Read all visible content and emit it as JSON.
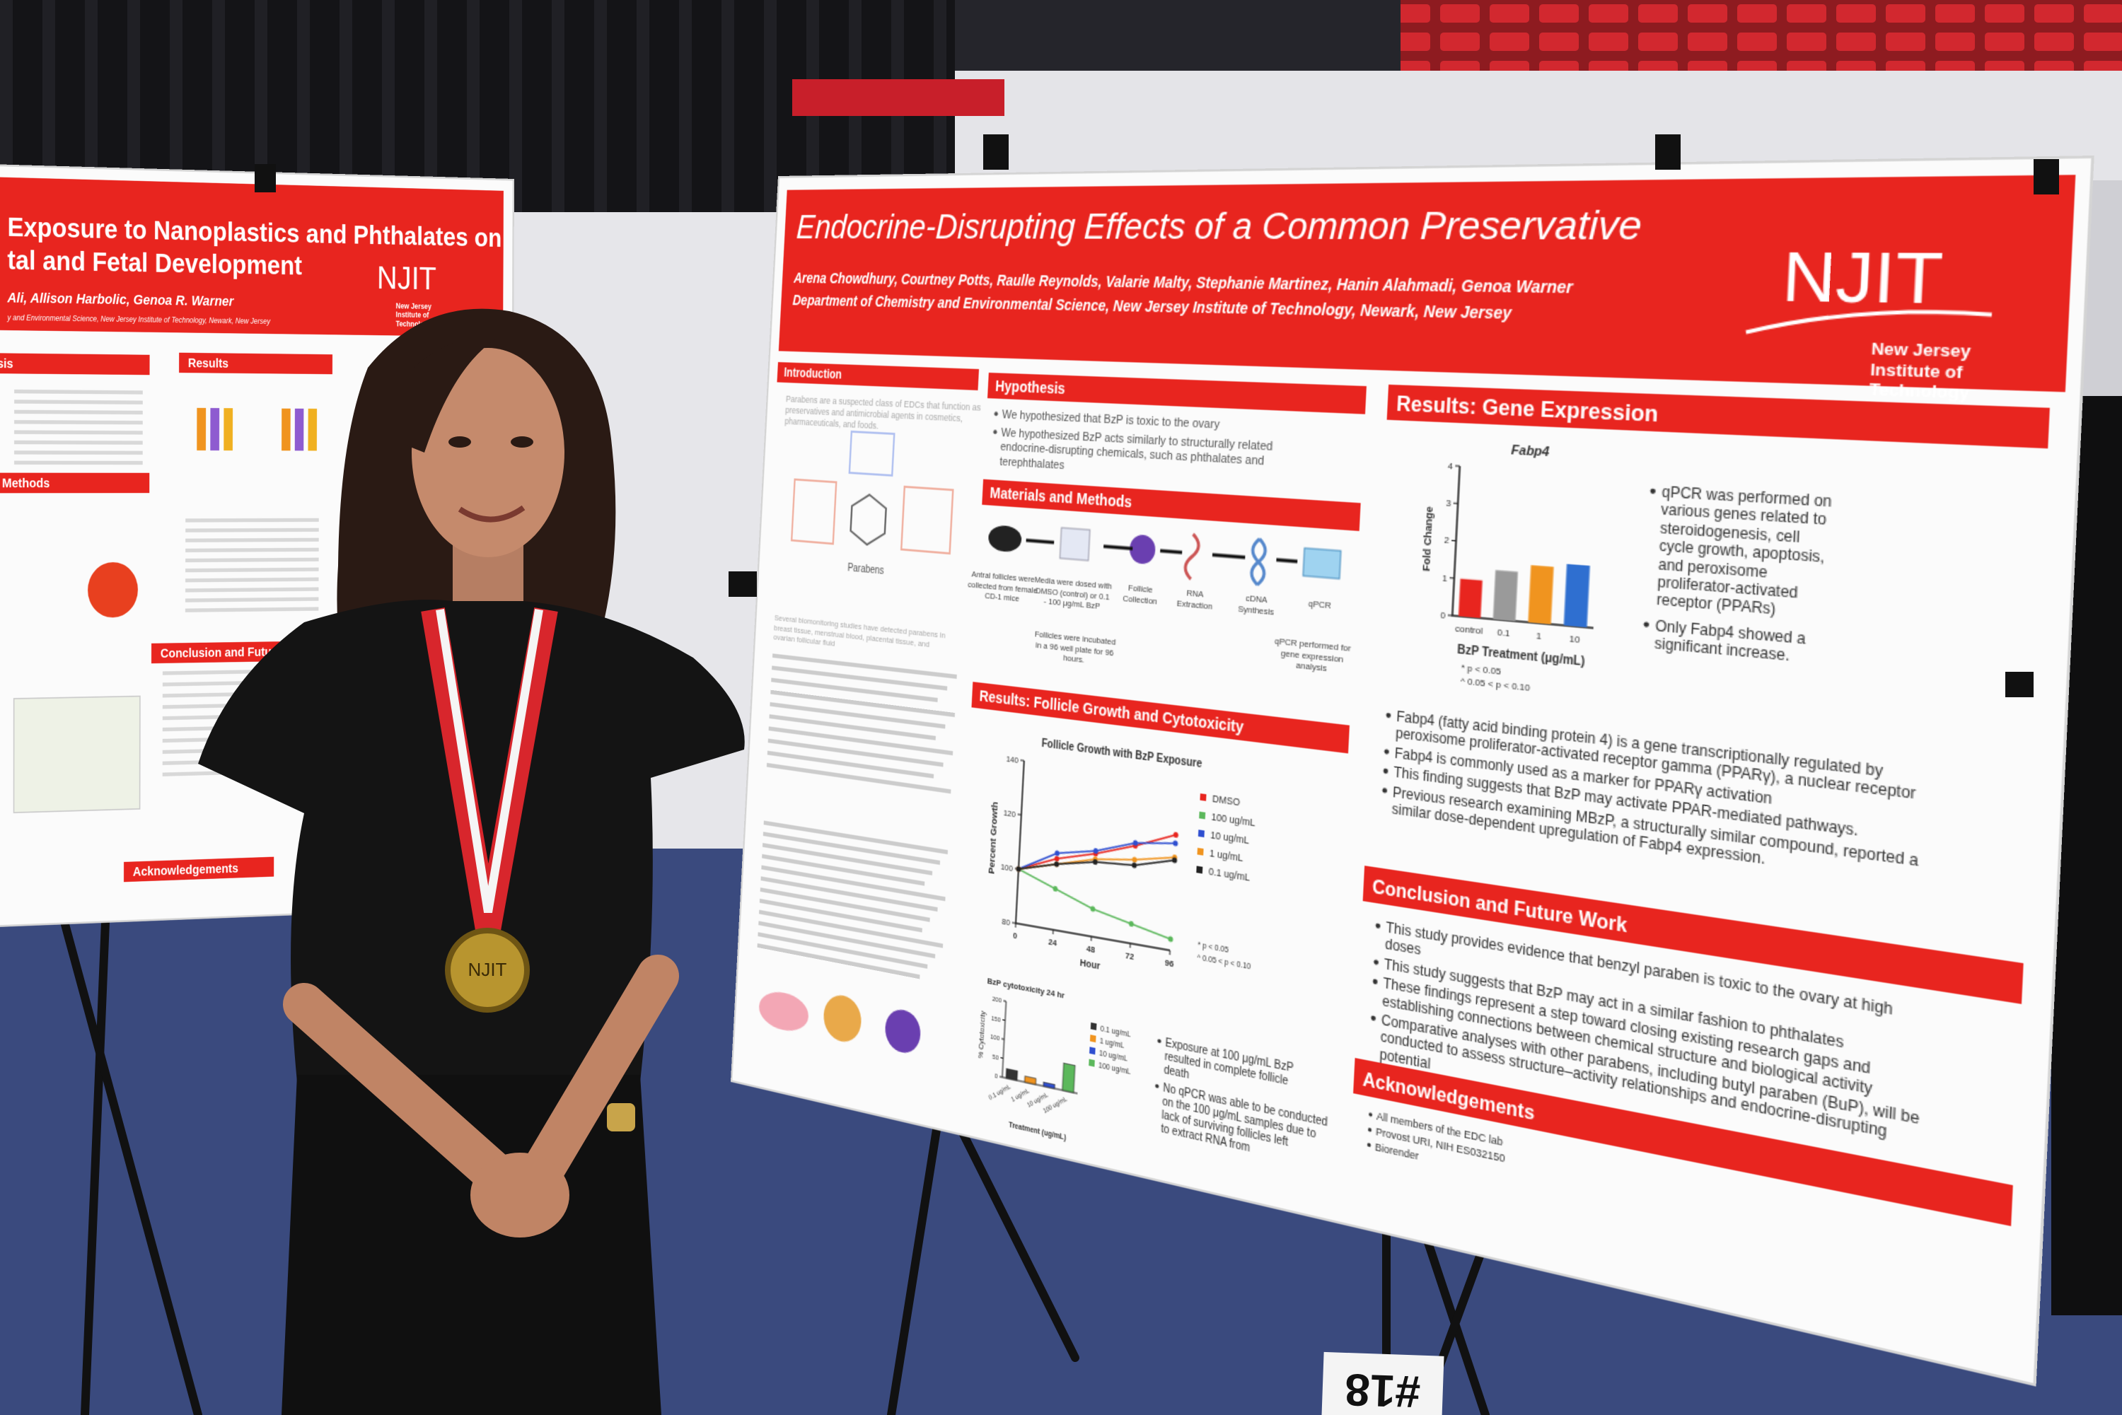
{
  "main_poster": {
    "title": "Endocrine-Disrupting Effects of a Common Preservative",
    "authors": "Arena Chowdhury, Courtney Potts, Raulle Reynolds, Valarie Malty, Stephanie Martinez, Hanin Alahmadi, Genoa Warner",
    "affiliation": "Department of Chemistry and Environmental Science, New Jersey Institute of Technology, Newark, New Jersey",
    "logo": "NJIT",
    "logo_subtitle": "New Jersey Institute of Technology",
    "introduction": {
      "heading": "Introduction",
      "paragraphs": [
        "Parabens are a suspected class of EDCs that function as preservatives and antimicrobial agents in cosmetics, pharmaceuticals, and foods.",
        "Several biomonitoring studies have detected parabens in breast tissue, menstrual blood, placental tissue, and ovarian follicular fluid"
      ],
      "figure_label": "Parabens"
    },
    "hypothesis": {
      "heading": "Hypothesis",
      "bullets": [
        "We hypothesized that BzP is toxic to the ovary",
        "We hypothesized BzP acts similarly to structurally related endocrine-disrupting chemicals, such as phthalates and terephthalates"
      ]
    },
    "methods": {
      "heading": "Materials and Methods",
      "steps": [
        "Antral follicles were collected from female CD-1 mice",
        "Media were dosed with DMSO (control) or 0.1 - 100 μg/mL BzP",
        "Follicle Collection",
        "RNA Extraction",
        "cDNA Synthesis",
        "qPCR"
      ],
      "notes": [
        "Follicles were incubated in a 96 well plate for 96 hours.",
        "qPCR performed for gene expression analysis"
      ]
    },
    "follicle_results": {
      "heading": "Results: Follicle Growth and Cytotoxicity",
      "growth_chart": {
        "title": "Follicle Growth with BzP Exposure",
        "x_label": "Hour",
        "y_label": "Percent Growth",
        "x": [
          0,
          24,
          48,
          72,
          96
        ],
        "xlim": [
          0,
          96
        ],
        "ylim": [
          80,
          140
        ],
        "xticks": [
          0,
          24,
          48,
          72,
          96
        ],
        "yticks": [
          80,
          100,
          120,
          140
        ],
        "series": [
          {
            "name": "DMSO",
            "color": "#e8251f",
            "values": [
              100,
              106,
              110,
              115,
              121
            ]
          },
          {
            "name": "100 ug/mL",
            "color": "#5cb85c",
            "values": [
              100,
              95,
              90,
              87,
              84
            ]
          },
          {
            "name": "10 ug/mL",
            "color": "#2f4fd0",
            "values": [
              100,
              108,
              111,
              116,
              118
            ]
          },
          {
            "name": "1 ug/mL",
            "color": "#f0941f",
            "values": [
              100,
              104,
              108,
              110,
              113
            ]
          },
          {
            "name": "0.1 ug/mL",
            "color": "#222222",
            "values": [
              100,
              104,
              107,
              108,
              112
            ]
          }
        ],
        "notes": [
          "* p < 0.05",
          "^ 0.05 < p < 0.10"
        ]
      },
      "cytotoxicity_chart": {
        "title": "BzP cytotoxicity 24 hr",
        "x_label": "Treatment (ug/mL)",
        "y_label": "% Cytotoxicity",
        "categories": [
          "0.1 ug/mL",
          "1 ug/mL",
          "10 ug/mL",
          "100 ug/mL"
        ],
        "values": [
          25,
          15,
          10,
          70
        ],
        "colors": [
          "#333333",
          "#f0941f",
          "#2f4fd0",
          "#5cb85c"
        ],
        "ylim": [
          0,
          200
        ],
        "yticks": [
          0,
          50,
          100,
          150,
          200
        ]
      },
      "bullets": [
        "Exposure at 100 μg/mL BzP resulted in complete follicle death",
        "No qPCR was able to be conducted on the 100 μg/mL samples due to lack of surviving follicles left to extract RNA from"
      ]
    },
    "gene_results": {
      "heading": "Results: Gene Expression",
      "chart": {
        "title": "Fabp4",
        "x_label": "BzP Treatment (μg/mL)",
        "y_label": "Fold Change",
        "categories": [
          "control",
          "0.1",
          "1",
          "10"
        ],
        "values": [
          1.0,
          1.3,
          1.5,
          1.6
        ],
        "colors": [
          "#e8251f",
          "#9a9a9a",
          "#f0941f",
          "#2f6fd0"
        ],
        "ylim": [
          0,
          4
        ],
        "yticks": [
          0,
          1,
          2,
          3,
          4
        ],
        "notes": [
          "* p < 0.05",
          "^ 0.05 < p < 0.10"
        ]
      },
      "bullets_beside": [
        "qPCR was performed on various genes related to steroidogenesis, cell cycle growth, apoptosis, and peroxisome proliferator-activated receptor (PPARs)",
        "Only Fabp4 showed a significant increase."
      ],
      "bullets": [
        "Fabp4 (fatty acid binding protein 4) is a gene transcriptionally regulated by peroxisome proliferator-activated receptor gamma (PPARγ), a nuclear receptor",
        "Fabp4 is commonly used as a marker for PPARγ activation",
        "This finding suggests that BzP may activate PPAR-mediated pathways.",
        "Previous research examining MBzP, a structurally similar compound, reported a similar dose-dependent upregulation of Fabp4 expression."
      ]
    },
    "conclusion": {
      "heading": "Conclusion and Future Work",
      "bullets": [
        "This study provides evidence that benzyl paraben is toxic to the ovary at high doses",
        "This study suggests that BzP may act in a similar fashion to phthalates",
        "These findings represent a step toward closing existing research gaps and establishing connections between chemical structure and biological activity",
        "Comparative analyses with other parabens, including butyl paraben (BuP), will be conducted to assess structure–activity relationships and endocrine-disrupting potential"
      ]
    },
    "acknowledgements": {
      "heading": "Acknowledgements",
      "bullets": [
        "All members of the EDC lab",
        "Provost URI, NIH ES032150",
        "Biorender"
      ]
    }
  },
  "left_poster": {
    "title_lines": [
      "Exposure to Nanoplastics and Phthalates on",
      "tal and Fetal Development"
    ],
    "authors": "Ali, Allison Harbolic, Genoa R. Warner",
    "affiliation": "y and Environmental Science, New Jersey Institute of Technology, Newark, New Jersey",
    "logo": "NJIT",
    "logo_subtitle": "New Jersey Institute of Technology",
    "headings": [
      "pothesis",
      "Results",
      "ls and Methods",
      "Conclusion and Future W",
      "Acknowledgements"
    ]
  },
  "medal": "NJIT",
  "table_number": "#18"
}
